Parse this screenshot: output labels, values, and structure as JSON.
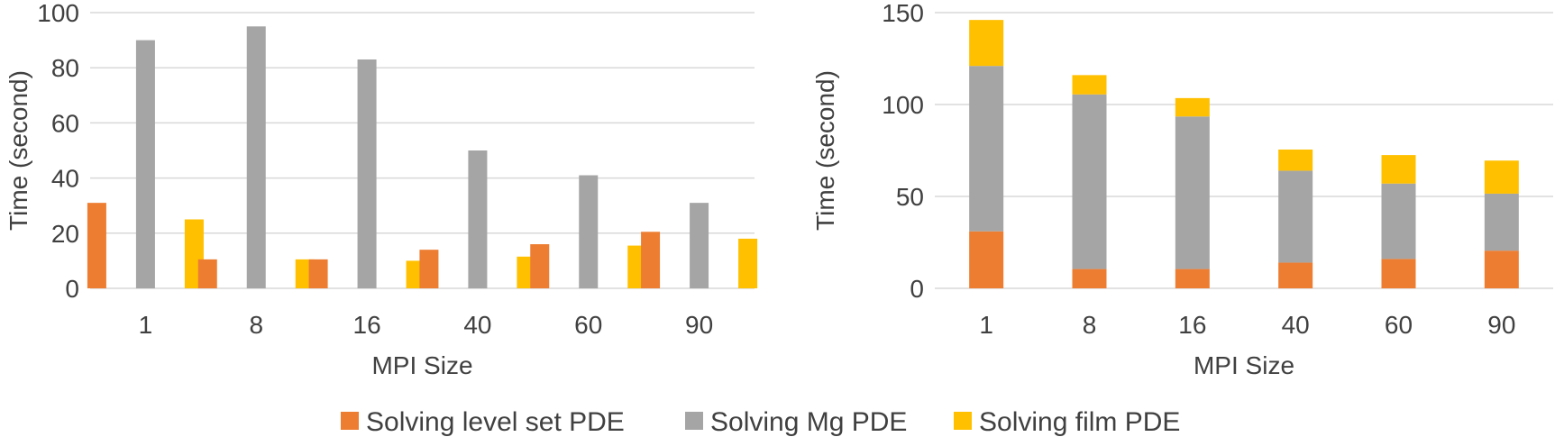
{
  "colors": {
    "level_set": "#ED7D31",
    "mg": "#A5A5A5",
    "film": "#FFC000",
    "grid": "#D9D9D9",
    "text": "#404040"
  },
  "legend": {
    "items": [
      {
        "label": "Solving level set PDE",
        "color_key": "level_set"
      },
      {
        "label": "Solving Mg PDE",
        "color_key": "mg"
      },
      {
        "label": "Solving film PDE",
        "color_key": "film"
      }
    ],
    "placement": "bottom-center"
  },
  "chart_data": [
    {
      "type": "bar",
      "mode": "grouped",
      "categories": [
        "1",
        "8",
        "16",
        "40",
        "60",
        "90"
      ],
      "series": [
        {
          "name": "Solving level set PDE",
          "color_key": "level_set",
          "values": [
            31,
            10.5,
            10.5,
            14,
            16,
            20.5
          ]
        },
        {
          "name": "Solving Mg PDE",
          "color_key": "mg",
          "values": [
            90,
            95,
            83,
            50,
            41,
            31
          ]
        },
        {
          "name": "Solving film PDE",
          "color_key": "film",
          "values": [
            25,
            10.5,
            10,
            11.5,
            15.5,
            18
          ]
        }
      ],
      "xlabel": "MPI Size",
      "ylabel": "Time (second)",
      "ylim": [
        0,
        100
      ],
      "yticks": [
        "0",
        "20",
        "40",
        "60",
        "80",
        "100"
      ],
      "ytick_values": [
        0,
        20,
        40,
        60,
        80,
        100
      ],
      "grid": true
    },
    {
      "type": "bar",
      "mode": "stacked",
      "categories": [
        "1",
        "8",
        "16",
        "40",
        "60",
        "90"
      ],
      "series": [
        {
          "name": "Solving level set PDE",
          "color_key": "level_set",
          "values": [
            31,
            10.5,
            10.5,
            14,
            16,
            20.5
          ]
        },
        {
          "name": "Solving Mg PDE",
          "color_key": "mg",
          "values": [
            90,
            95,
            83,
            50,
            41,
            31
          ]
        },
        {
          "name": "Solving film PDE",
          "color_key": "film",
          "values": [
            25,
            10.5,
            10,
            11.5,
            15.5,
            18
          ]
        }
      ],
      "xlabel": "MPI Size",
      "ylabel": "Time (second)",
      "ylim": [
        0,
        150
      ],
      "yticks": [
        "0",
        "50",
        "100",
        "150"
      ],
      "ytick_values": [
        0,
        50,
        100,
        150
      ],
      "grid": true
    }
  ]
}
